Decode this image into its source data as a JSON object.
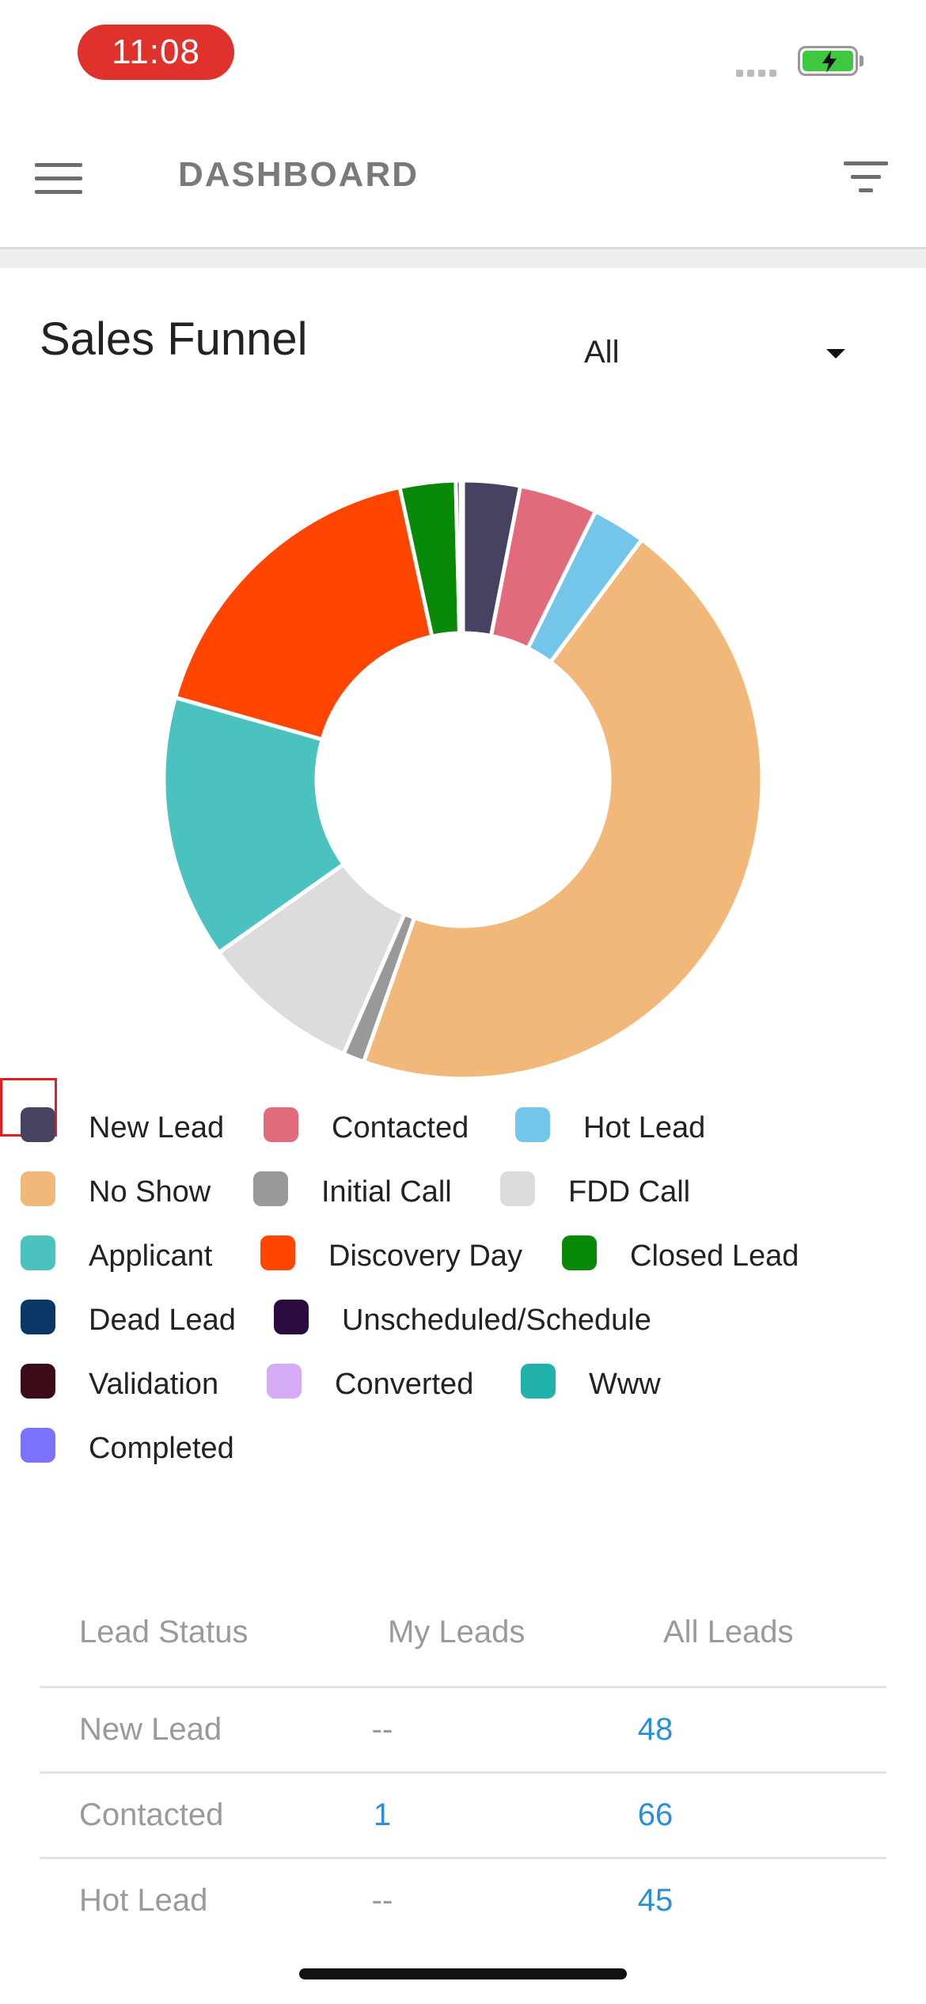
{
  "status_bar": {
    "time": "11:08"
  },
  "header": {
    "title": "DASHBOARD"
  },
  "section": {
    "title": "Sales Funnel"
  },
  "filter": {
    "selected": "All"
  },
  "chart_data": {
    "type": "pie",
    "title": "",
    "hole_ratio": 0.49,
    "slices": [
      {
        "label": "New Lead",
        "value": 48,
        "color": "#474261"
      },
      {
        "label": "Contacted",
        "value": 66,
        "color": "#e26b7b"
      },
      {
        "label": "Hot Lead",
        "value": 45,
        "color": "#73c6ea"
      },
      {
        "label": "No Show",
        "value": 705,
        "color": "#f2b879"
      },
      {
        "label": "Initial Call",
        "value": 18,
        "color": "#999999"
      },
      {
        "label": "FDD Call",
        "value": 135,
        "color": "#dcdcdc"
      },
      {
        "label": "Applicant",
        "value": 222,
        "color": "#4bc2bf"
      },
      {
        "label": "Discovery Day",
        "value": 268,
        "color": "#ff4500"
      },
      {
        "label": "Closed Lead",
        "value": 47,
        "color": "#088a08"
      },
      {
        "label": "Dead Lead",
        "value": 4,
        "color": "#083863"
      },
      {
        "label": "Unscheduled/Schedule",
        "value": 2,
        "color": "#2b0c40"
      },
      {
        "label": "Validation",
        "value": 0,
        "color": "#3b0c16"
      },
      {
        "label": "Converted",
        "value": 0,
        "color": "#d5acf5"
      },
      {
        "label": "Www",
        "value": 0,
        "color": "#20b2aa"
      },
      {
        "label": "Completed",
        "value": 0,
        "color": "#7b72fb"
      }
    ]
  },
  "table": {
    "headers": {
      "status": "Lead Status",
      "mine": "My Leads",
      "all": "All Leads"
    },
    "rows": [
      {
        "status": "New Lead",
        "mine": "--",
        "all": "48"
      },
      {
        "status": "Contacted",
        "mine": "1",
        "all": "66"
      },
      {
        "status": "Hot Lead",
        "mine": "--",
        "all": "45"
      }
    ]
  }
}
